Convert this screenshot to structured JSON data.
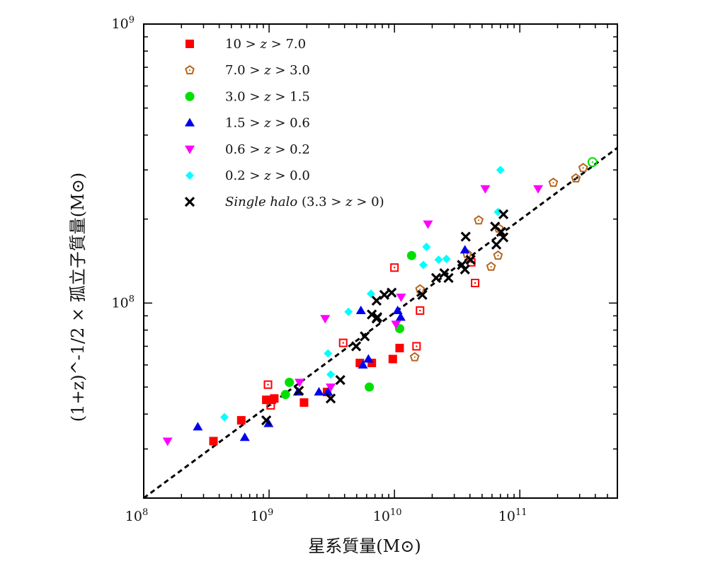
{
  "chart_data": {
    "type": "scatter",
    "title": "",
    "xlabel": "星系質量(M⊙)",
    "ylabel": "(1+z)^-1/2 × 孤立子質量(M⊙)",
    "xscale": "log",
    "yscale": "log",
    "xlim": [
      100000000.0,
      600000000000.0
    ],
    "ylim": [
      20000000.0,
      1000000000.0
    ],
    "x_ticks": [
      {
        "value": 100000000.0,
        "base": "10",
        "exp": "8"
      },
      {
        "value": 1000000000.0,
        "base": "10",
        "exp": "9"
      },
      {
        "value": 10000000000.0,
        "base": "10",
        "exp": "10"
      },
      {
        "value": 100000000000.0,
        "base": "10",
        "exp": "11"
      }
    ],
    "y_ticks": [
      {
        "value": 100000000.0,
        "base": "10",
        "exp": "8"
      },
      {
        "value": 1000000000.0,
        "base": "10",
        "exp": "9"
      }
    ],
    "grid": false,
    "legend_position": "top-left",
    "fit_line": {
      "style": "dashed",
      "color": "#000000",
      "x": [
        100000000.0,
        600000000000.0
      ],
      "y": [
        20000000.0,
        360000000.0
      ]
    },
    "series": [
      {
        "name": "10 > z > 7.0",
        "label_parts": [
          "10 > ",
          "z",
          " > 7.0"
        ],
        "marker": "square",
        "color": "#ff0000",
        "filled": true,
        "points": [
          [
            360000000.0,
            32000000.0
          ],
          [
            600000000.0,
            38000000.0
          ],
          [
            950000000.0,
            45000000.0
          ],
          [
            1050000000.0,
            45000000.0
          ],
          [
            1100000000.0,
            45500000.0
          ],
          [
            1900000000.0,
            44000000.0
          ],
          [
            2900000000.0,
            48000000.0
          ],
          [
            5300000000.0,
            61000000.0
          ],
          [
            6600000000.0,
            61000000.0
          ],
          [
            9700000000.0,
            63000000.0
          ],
          [
            11000000000.0,
            69000000.0
          ]
        ]
      },
      {
        "name": "10 > z > 7.0 (open)",
        "legend": false,
        "marker": "square-open",
        "color": "#ff0000",
        "filled": false,
        "points": [
          [
            980000000.0,
            51000000.0
          ],
          [
            1030000000.0,
            43000000.0
          ],
          [
            3900000000.0,
            72000000.0
          ],
          [
            10000000000.0,
            134000000.0
          ],
          [
            15000000000.0,
            70000000.0
          ],
          [
            16000000000.0,
            94000000.0
          ],
          [
            41000000000.0,
            140000000.0
          ],
          [
            44000000000.0,
            118000000.0
          ]
        ]
      },
      {
        "name": "7.0 > z > 3.0",
        "label_parts": [
          "7.0 > ",
          "z",
          " > 3.0"
        ],
        "marker": "pentagon",
        "color": "#b5651d",
        "filled": false,
        "points": [
          [
            14500000000.0,
            64000000.0
          ],
          [
            16000000000.0,
            112000000.0
          ],
          [
            38000000000.0,
            150000000.0
          ],
          [
            47000000000.0,
            198000000.0
          ],
          [
            59000000000.0,
            135000000.0
          ],
          [
            67000000000.0,
            148000000.0
          ],
          [
            68000000000.0,
            185000000.0
          ],
          [
            185000000000.0,
            270000000.0
          ],
          [
            280000000000.0,
            280000000.0
          ],
          [
            320000000000.0,
            305000000.0
          ]
        ]
      },
      {
        "name": "3.0 > z > 1.5",
        "label_parts": [
          "3.0 > ",
          "z",
          " > 1.5"
        ],
        "marker": "circle",
        "color": "#00e000",
        "filled": true,
        "points": [
          [
            1450000000.0,
            52000000.0
          ],
          [
            1350000000.0,
            47000000.0
          ],
          [
            6300000000.0,
            50000000.0
          ],
          [
            13700000000.0,
            148000000.0
          ],
          [
            11000000000.0,
            81000000.0
          ]
        ]
      },
      {
        "name": "3.0 > z > 1.5 (open)",
        "legend": false,
        "marker": "circle-open",
        "color": "#00e000",
        "filled": false,
        "points": [
          [
            380000000000.0,
            320000000.0
          ]
        ]
      },
      {
        "name": "1.5 > z > 0.6",
        "label_parts": [
          "1.5 > ",
          "z",
          " > 0.6"
        ],
        "marker": "triangle-up",
        "color": "#0000ee",
        "filled": true,
        "points": [
          [
            270000000.0,
            36000000.0
          ],
          [
            640000000.0,
            33000000.0
          ],
          [
            990000000.0,
            37000000.0
          ],
          [
            1700000000.0,
            48000000.0
          ],
          [
            2500000000.0,
            48000000.0
          ],
          [
            2950000000.0,
            48000000.0
          ],
          [
            5600000000.0,
            60000000.0
          ],
          [
            6200000000.0,
            63000000.0
          ],
          [
            5400000000.0,
            94000000.0
          ],
          [
            10600000000.0,
            94000000.0
          ],
          [
            11200000000.0,
            89000000.0
          ],
          [
            36500000000.0,
            155000000.0
          ]
        ]
      },
      {
        "name": "0.6 > z > 0.2",
        "label_parts": [
          "0.6 > ",
          "z",
          " > 0.2"
        ],
        "marker": "triangle-down",
        "color": "#ff00ff",
        "filled": true,
        "points": [
          [
            155000000.0,
            32000000.0
          ],
          [
            1750000000.0,
            52000000.0
          ],
          [
            3100000000.0,
            50000000.0
          ],
          [
            2800000000.0,
            88000000.0
          ],
          [
            10300000000.0,
            84000000.0
          ],
          [
            11300000000.0,
            105000000.0
          ],
          [
            18500000000.0,
            192000000.0
          ],
          [
            53000000000.0,
            257000000.0
          ],
          [
            140000000000.0,
            257000000.0
          ]
        ]
      },
      {
        "name": "0.2 > z > 0.0",
        "label_parts": [
          "0.2 > ",
          "z",
          " > 0.0"
        ],
        "marker": "diamond",
        "color": "#00ffff",
        "filled": true,
        "points": [
          [
            440000000.0,
            39000000.0
          ],
          [
            2950000000.0,
            66000000.0
          ],
          [
            3100000000.0,
            55500000.0
          ],
          [
            4300000000.0,
            93000000.0
          ],
          [
            6500000000.0,
            108000000.0
          ],
          [
            17000000000.0,
            137000000.0
          ],
          [
            18000000000.0,
            159000000.0
          ],
          [
            22500000000.0,
            143000000.0
          ],
          [
            26000000000.0,
            144000000.0
          ],
          [
            70000000000.0,
            300000000.0
          ],
          [
            67000000000.0,
            212000000.0
          ]
        ]
      },
      {
        "name": "Single halo (3.3 > z > 0)",
        "label_parts": [
          "Single halo",
          " (3.3 > ",
          "z",
          " > 0)"
        ],
        "marker": "x",
        "color": "#000000",
        "filled": true,
        "points": [
          [
            950000000.0,
            38000000.0
          ],
          [
            1730000000.0,
            48500000.0
          ],
          [
            3100000000.0,
            45500000.0
          ],
          [
            3700000000.0,
            53000000.0
          ],
          [
            4950000000.0,
            70000000.0
          ],
          [
            5800000000.0,
            76000000.0
          ],
          [
            6600000000.0,
            91000000.0
          ],
          [
            7300000000.0,
            89000000.0
          ],
          [
            7200000000.0,
            102000000.0
          ],
          [
            8300000000.0,
            107000000.0
          ],
          [
            9500000000.0,
            109000000.0
          ],
          [
            7200000000.0,
            88000000.0
          ],
          [
            16700000000.0,
            107000000.0
          ],
          [
            21500000000.0,
            123000000.0
          ],
          [
            25000000000.0,
            128000000.0
          ],
          [
            27000000000.0,
            123000000.0
          ],
          [
            34500000000.0,
            137000000.0
          ],
          [
            37000000000.0,
            173000000.0
          ],
          [
            36500000000.0,
            132000000.0
          ],
          [
            40500000000.0,
            143000000.0
          ],
          [
            63500000000.0,
            188000000.0
          ],
          [
            65000000000.0,
            162000000.0
          ],
          [
            71000000000.0,
            180000000.0
          ],
          [
            74000000000.0,
            208000000.0
          ],
          [
            74000000000.0,
            172000000.0
          ]
        ]
      }
    ]
  }
}
